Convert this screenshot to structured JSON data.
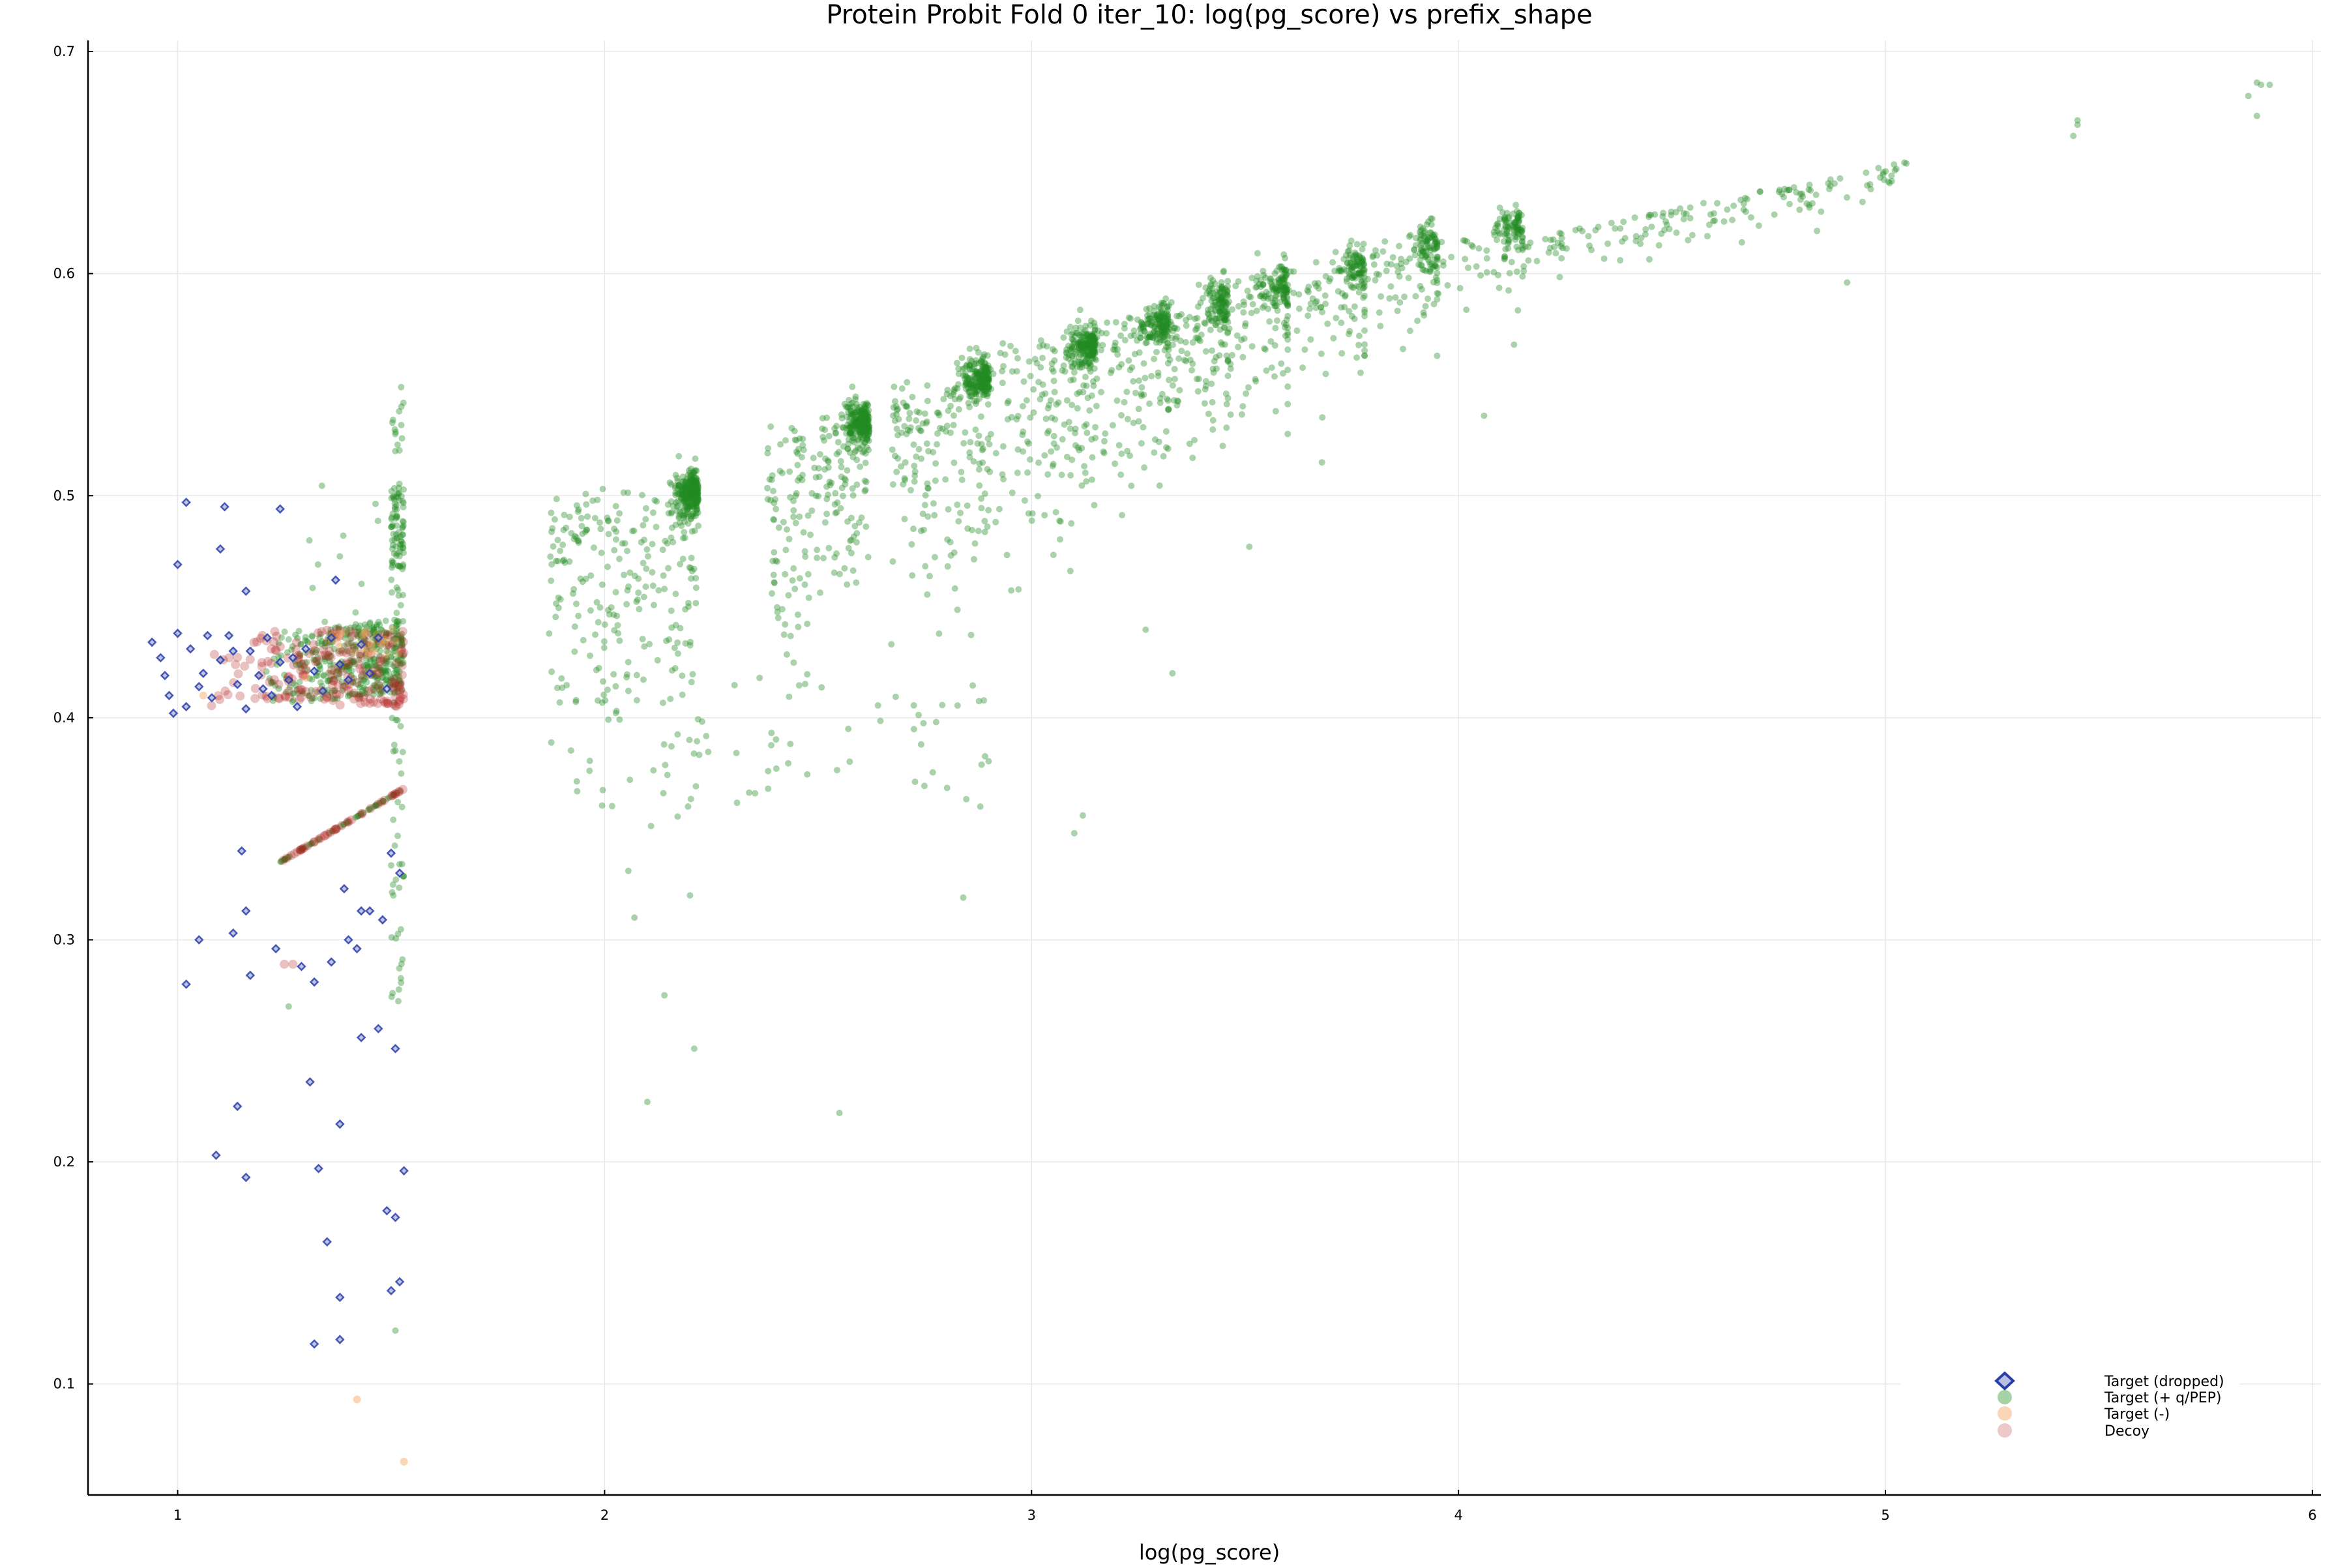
{
  "chart_data": {
    "type": "scatter",
    "title": "Protein Probit Fold 0 iter_10: log(pg_score) vs prefix_shape",
    "xlabel": "log(pg_score)",
    "ylabel": "",
    "xlim": [
      0.79,
      6.02
    ],
    "ylim": [
      0.05,
      0.705
    ],
    "x_ticks": [
      1,
      2,
      3,
      4,
      5,
      6
    ],
    "x_tick_labels": [
      "1",
      "2",
      "3",
      "4",
      "5",
      "6"
    ],
    "y_ticks": [
      0.1,
      0.2,
      0.3,
      0.4,
      0.5,
      0.6,
      0.7
    ],
    "y_tick_labels": [
      "0.1",
      "0.2",
      "0.3",
      "0.4",
      "0.5",
      "0.6",
      "0.7"
    ],
    "grid": true,
    "legend_position": "bottom-right",
    "series": [
      {
        "name": "Target (dropped)",
        "marker": "diamond",
        "color": "#2b3fa8",
        "points": [
          [
            1.02,
            0.497
          ],
          [
            1.11,
            0.495
          ],
          [
            1.0,
            0.469
          ],
          [
            1.1,
            0.476
          ],
          [
            1.16,
            0.457
          ],
          [
            1.24,
            0.494
          ],
          [
            1.37,
            0.462
          ],
          [
            0.94,
            0.434
          ],
          [
            0.96,
            0.427
          ],
          [
            0.97,
            0.419
          ],
          [
            0.98,
            0.41
          ],
          [
            1.0,
            0.438
          ],
          [
            1.02,
            0.405
          ],
          [
            1.03,
            0.431
          ],
          [
            1.05,
            0.414
          ],
          [
            1.07,
            0.437
          ],
          [
            1.08,
            0.409
          ],
          [
            1.1,
            0.426
          ],
          [
            1.12,
            0.437
          ],
          [
            1.14,
            0.415
          ],
          [
            1.16,
            0.404
          ],
          [
            1.17,
            0.43
          ],
          [
            1.19,
            0.419
          ],
          [
            1.21,
            0.436
          ],
          [
            1.22,
            0.41
          ],
          [
            1.24,
            0.425
          ],
          [
            1.26,
            0.417
          ],
          [
            1.28,
            0.405
          ],
          [
            1.3,
            0.431
          ],
          [
            1.32,
            0.421
          ],
          [
            1.34,
            0.412
          ],
          [
            1.36,
            0.436
          ],
          [
            1.38,
            0.424
          ],
          [
            1.4,
            0.417
          ],
          [
            1.43,
            0.433
          ],
          [
            1.45,
            0.42
          ],
          [
            1.47,
            0.436
          ],
          [
            1.49,
            0.413
          ],
          [
            0.99,
            0.402
          ],
          [
            1.06,
            0.42
          ],
          [
            1.13,
            0.43
          ],
          [
            1.2,
            0.413
          ],
          [
            1.27,
            0.427
          ],
          [
            1.15,
            0.34
          ],
          [
            1.05,
            0.3
          ],
          [
            1.02,
            0.28
          ],
          [
            1.13,
            0.303
          ],
          [
            1.16,
            0.313
          ],
          [
            1.17,
            0.284
          ],
          [
            1.23,
            0.296
          ],
          [
            1.29,
            0.288
          ],
          [
            1.32,
            0.281
          ],
          [
            1.36,
            0.29
          ],
          [
            1.39,
            0.323
          ],
          [
            1.42,
            0.296
          ],
          [
            1.43,
            0.313
          ],
          [
            1.45,
            0.313
          ],
          [
            1.48,
            0.309
          ],
          [
            1.5,
            0.339
          ],
          [
            1.52,
            0.33
          ],
          [
            1.51,
            0.251
          ],
          [
            1.47,
            0.26
          ],
          [
            1.43,
            0.256
          ],
          [
            1.4,
            0.3
          ],
          [
            1.09,
            0.203
          ],
          [
            1.14,
            0.225
          ],
          [
            1.16,
            0.193
          ],
          [
            1.31,
            0.236
          ],
          [
            1.33,
            0.197
          ],
          [
            1.38,
            0.217
          ],
          [
            1.35,
            0.164
          ],
          [
            1.32,
            0.118
          ],
          [
            1.38,
            0.12
          ],
          [
            1.38,
            0.139
          ],
          [
            1.49,
            0.178
          ],
          [
            1.51,
            0.175
          ],
          [
            1.53,
            0.196
          ],
          [
            1.5,
            0.142
          ],
          [
            1.52,
            0.146
          ]
        ]
      },
      {
        "name": "Target (+ q/PEP)",
        "marker": "circle",
        "color": "#228b22",
        "points": []
      },
      {
        "name": "Target (-)",
        "marker": "circle",
        "color": "#f4a460",
        "points": [
          [
            1.42,
            0.093
          ],
          [
            1.53,
            0.065
          ],
          [
            1.06,
            0.41
          ],
          [
            1.3,
            0.418
          ],
          [
            1.46,
            0.43
          ]
        ]
      },
      {
        "name": "Decoy",
        "marker": "circle",
        "color": "#b22222",
        "points": []
      }
    ]
  }
}
